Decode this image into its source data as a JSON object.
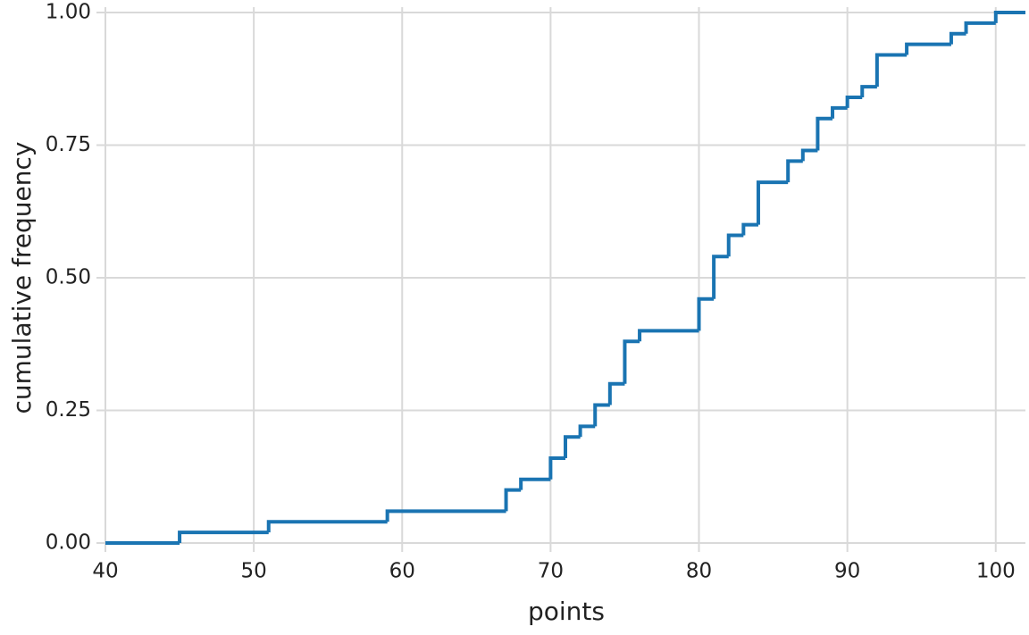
{
  "chart_data": {
    "type": "step",
    "x_label": "points",
    "y_label": "cumulative frequency",
    "x": [
      40,
      45,
      51,
      59,
      67,
      68,
      70,
      71,
      72,
      73,
      74,
      75,
      76,
      80,
      81,
      82,
      83,
      84,
      86,
      87,
      88,
      89,
      90,
      91,
      92,
      94,
      97,
      98,
      100
    ],
    "series": [
      {
        "color": "#1a74b2",
        "values": [
          0,
          0.02,
          0.04,
          0.06,
          0.1,
          0.12,
          0.16,
          0.2,
          0.22,
          0.26,
          0.3,
          0.38,
          0.4,
          0.46,
          0.54,
          0.58,
          0.6,
          0.68,
          0.72,
          0.74,
          0.8,
          0.82,
          0.84,
          0.86,
          0.92,
          0.94,
          0.96,
          0.98,
          1.0
        ]
      }
    ],
    "xlim": [
      40,
      102
    ],
    "xticks": [
      40,
      50,
      60,
      70,
      80,
      90,
      100
    ],
    "ylim": [
      0,
      1
    ],
    "yticks": [
      {
        "value": 0,
        "label": "0.00"
      },
      {
        "value": 0.25,
        "label": "0.25"
      },
      {
        "value": 0.5,
        "label": "0.50"
      },
      {
        "value": 0.75,
        "label": "0.75"
      },
      {
        "value": 1,
        "label": "1.00"
      }
    ],
    "grid": true
  }
}
